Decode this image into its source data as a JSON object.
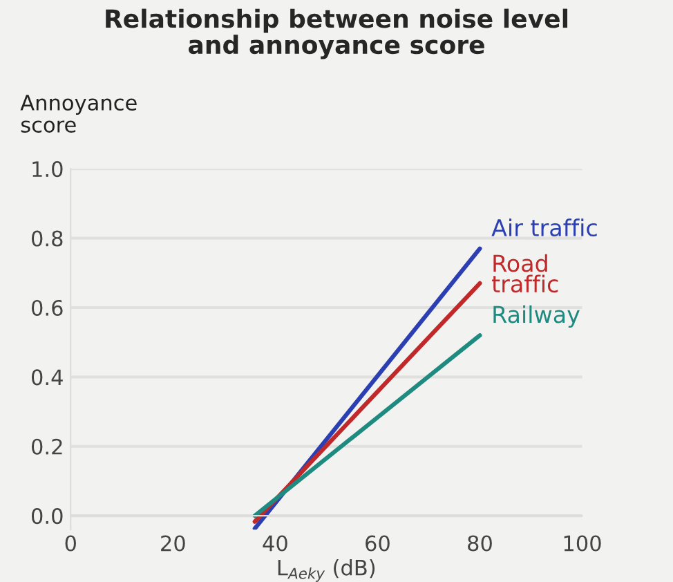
{
  "chart_data": {
    "type": "line",
    "title": "Relationship between noise level\nand annoyance score",
    "xlabel": "L$_{Aeky}$ (dB)",
    "ylabel": "Annoyance\nscore",
    "x": [
      36,
      80
    ],
    "series": [
      {
        "name": "Air traffic",
        "color": "#2b3fb2",
        "values": [
          -0.037,
          0.77
        ]
      },
      {
        "name": "Road\ntraffic",
        "color": "#c0282a",
        "values": [
          -0.017,
          0.67
        ]
      },
      {
        "name": "Railway",
        "color": "#1f8a80",
        "values": [
          0.0,
          0.52
        ]
      }
    ],
    "xlim": [
      0,
      100
    ],
    "xticks": [
      0,
      20,
      40,
      60,
      80,
      100
    ],
    "ylim": [
      -0.04,
      1.0
    ],
    "yticks": [
      {
        "value": 0,
        "label": "0.0"
      },
      0.2,
      0.4,
      0.6,
      0.8,
      {
        "value": 1,
        "label": "1.0"
      }
    ],
    "grid": "y",
    "legend": false,
    "marker": "none",
    "line_style": "solid"
  }
}
